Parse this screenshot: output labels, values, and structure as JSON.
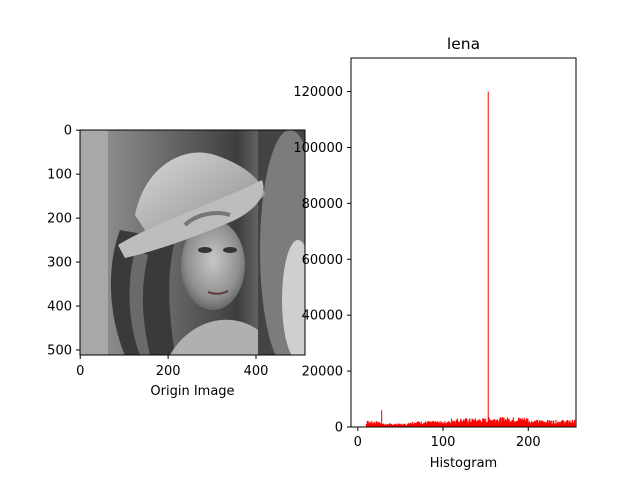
{
  "image_panel": {
    "xlabel": "Origin Image",
    "x_ticks": [
      "0",
      "200",
      "400"
    ],
    "y_ticks": [
      "0",
      "100",
      "200",
      "300",
      "400",
      "500"
    ],
    "image_size": [
      512,
      512
    ],
    "image_content": "grayscale portrait photograph"
  },
  "chart_data": {
    "type": "bar",
    "title": "lena",
    "xlabel": "Histogram",
    "ylabel": "",
    "xlim": [
      -8,
      256
    ],
    "ylim": [
      0,
      132000
    ],
    "x_ticks": [
      "0",
      "100",
      "200"
    ],
    "y_ticks": [
      "0",
      "20000",
      "40000",
      "60000",
      "80000",
      "100000",
      "120000"
    ],
    "bar_color": "#ff0000",
    "spikes": [
      {
        "x": 28,
        "value": 6000
      },
      {
        "x": 153,
        "value": 120000
      }
    ],
    "baseline_segments": [
      {
        "from": 0,
        "to": 10,
        "value": 50
      },
      {
        "from": 10,
        "to": 28,
        "value": 1500
      },
      {
        "from": 28,
        "to": 60,
        "value": 900
      },
      {
        "from": 60,
        "to": 110,
        "value": 1500
      },
      {
        "from": 110,
        "to": 153,
        "value": 2200
      },
      {
        "from": 153,
        "to": 200,
        "value": 2500
      },
      {
        "from": 200,
        "to": 255,
        "value": 1800
      }
    ]
  }
}
